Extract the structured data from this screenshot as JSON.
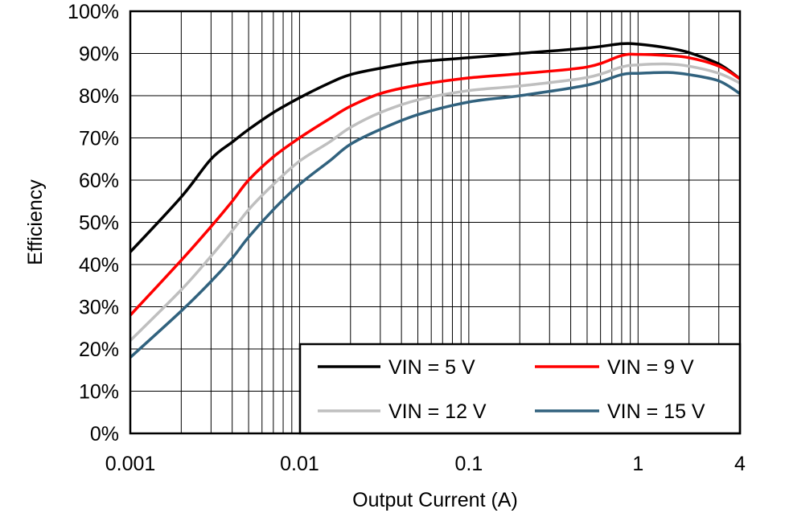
{
  "chart_data": {
    "type": "line",
    "title": "",
    "xlabel": "Output Current (A)",
    "ylabel": "Efficiency",
    "xscale": "log",
    "xlim": [
      0.001,
      4
    ],
    "ylim": [
      0,
      100
    ],
    "x_tick_labels": [
      {
        "value": 0.001,
        "label": "0.001"
      },
      {
        "value": 0.01,
        "label": "0.01"
      },
      {
        "value": 0.1,
        "label": "0.1"
      },
      {
        "value": 1,
        "label": "1"
      },
      {
        "value": 4,
        "label": "4"
      }
    ],
    "y_tick_labels": [
      {
        "value": 0,
        "label": "0%"
      },
      {
        "value": 10,
        "label": "10%"
      },
      {
        "value": 20,
        "label": "20%"
      },
      {
        "value": 30,
        "label": "30%"
      },
      {
        "value": 40,
        "label": "40%"
      },
      {
        "value": 50,
        "label": "50%"
      },
      {
        "value": 60,
        "label": "60%"
      },
      {
        "value": 70,
        "label": "70%"
      },
      {
        "value": 80,
        "label": "80%"
      },
      {
        "value": 90,
        "label": "90%"
      },
      {
        "value": 100,
        "label": "100%"
      }
    ],
    "grid": true,
    "legend_position": "bottom-right",
    "series": [
      {
        "name": "VIN = 5 V",
        "color": "#000000",
        "x": [
          0.001,
          0.002,
          0.003,
          0.004,
          0.005,
          0.007,
          0.01,
          0.015,
          0.02,
          0.03,
          0.05,
          0.1,
          0.2,
          0.5,
          0.8,
          1.0,
          1.5,
          2.0,
          3.0,
          4.0
        ],
        "y": [
          43,
          56,
          65,
          69,
          72,
          76,
          79.5,
          83,
          85,
          86.5,
          88,
          89,
          90,
          91.3,
          92.3,
          92.2,
          91.3,
          90.2,
          87.5,
          84
        ]
      },
      {
        "name": "VIN = 9 V",
        "color": "#ff0000",
        "x": [
          0.001,
          0.002,
          0.003,
          0.004,
          0.005,
          0.007,
          0.01,
          0.015,
          0.02,
          0.03,
          0.05,
          0.1,
          0.2,
          0.5,
          0.8,
          1.0,
          1.5,
          2.0,
          3.0,
          4.0
        ],
        "y": [
          28,
          41,
          49,
          55,
          60,
          65.5,
          70,
          74.5,
          77.5,
          80.5,
          82.5,
          84.2,
          85.2,
          86.8,
          89.5,
          89.8,
          89.5,
          89,
          87,
          84
        ]
      },
      {
        "name": "VIN = 12 V",
        "color": "#bfbfbf",
        "x": [
          0.001,
          0.002,
          0.003,
          0.004,
          0.005,
          0.007,
          0.01,
          0.015,
          0.02,
          0.03,
          0.05,
          0.1,
          0.2,
          0.5,
          0.8,
          1.0,
          1.5,
          2.0,
          3.0,
          4.0
        ],
        "y": [
          22,
          34,
          42,
          48,
          53,
          59,
          64.5,
          69,
          72.5,
          76,
          79,
          81.2,
          82.3,
          84.3,
          86.8,
          87.3,
          87.5,
          87,
          85.3,
          83
        ]
      },
      {
        "name": "VIN = 15 V",
        "color": "#31627e",
        "x": [
          0.001,
          0.002,
          0.003,
          0.004,
          0.005,
          0.007,
          0.01,
          0.015,
          0.02,
          0.03,
          0.05,
          0.1,
          0.2,
          0.5,
          0.8,
          1.0,
          1.5,
          2.0,
          3.0,
          4.0
        ],
        "y": [
          18,
          29,
          36,
          41.5,
          46.5,
          53,
          59,
          64.5,
          68.5,
          72,
          75.5,
          78.5,
          80,
          82.5,
          85,
          85.3,
          85.5,
          85,
          83.5,
          80.5
        ]
      }
    ]
  }
}
